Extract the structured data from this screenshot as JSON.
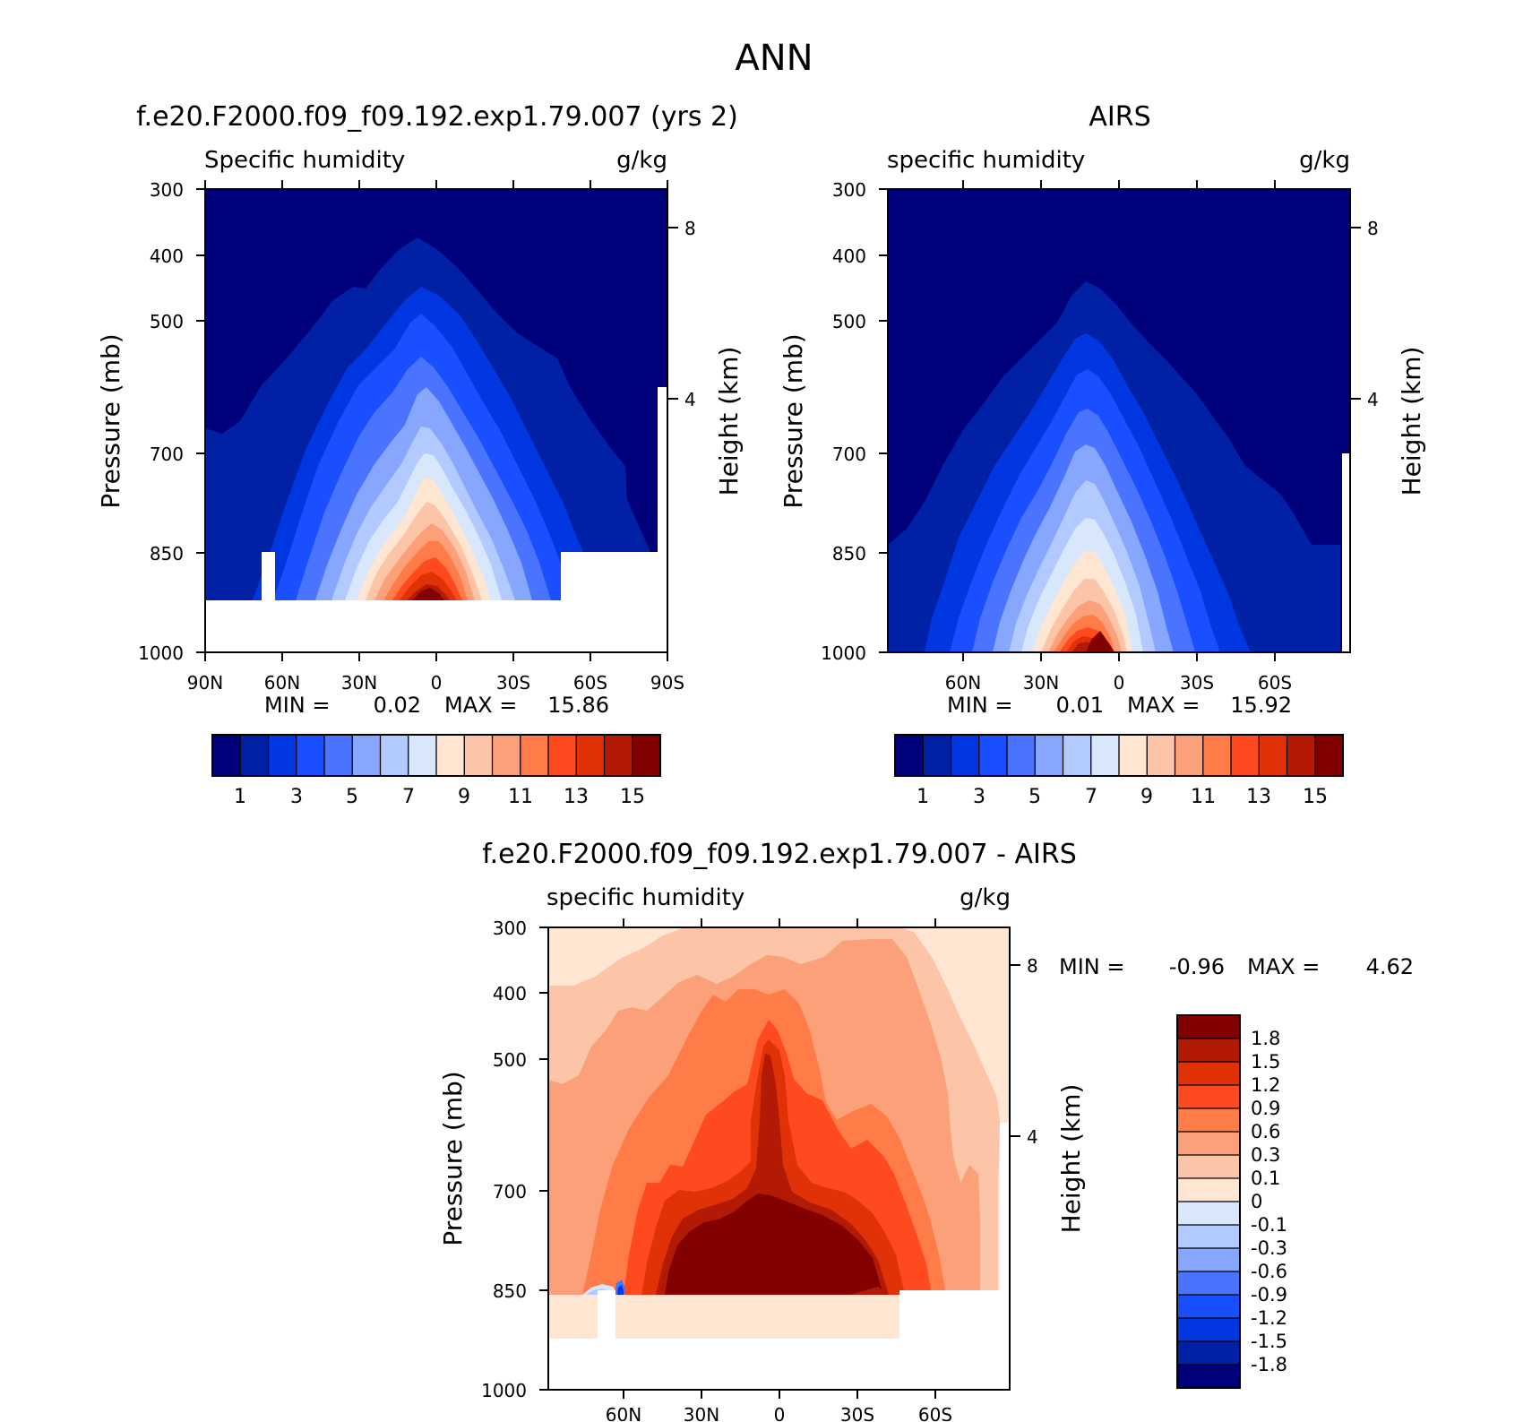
{
  "figure": {
    "title": "ANN"
  },
  "colors": {
    "seq_palette": [
      "#00007a",
      "#0021a6",
      "#0037e0",
      "#1a4fff",
      "#4a74ff",
      "#87a7ff",
      "#b2caff",
      "#d8e7fb",
      "#fee6d3",
      "#fdc5a8",
      "#fca07a",
      "#ff7b48",
      "#ff4a20",
      "#e13207",
      "#b21a05",
      "#820000"
    ],
    "diff_palette": [
      "#00007a",
      "#0021a6",
      "#0037e0",
      "#1a4fff",
      "#4a74ff",
      "#87a7ff",
      "#b2caff",
      "#d8e7fb",
      "#fee6d3",
      "#fdc5a8",
      "#fca07a",
      "#ff7b48",
      "#ff4a20",
      "#e13207",
      "#b21a05",
      "#820000"
    ]
  },
  "chart_data": [
    {
      "id": "model",
      "type": "contour",
      "title": "f.e20.F2000.f09_f09.192.exp1.79.007 (yrs 2)",
      "left_label": "Specific humidity",
      "right_label": "g/kg",
      "ylabel": "Pressure (mb)",
      "y2label": "Height (km)",
      "x_ticks": [
        "90N",
        "60N",
        "30N",
        "0",
        "30S",
        "60S",
        "90S"
      ],
      "x_tick_values": [
        90,
        60,
        30,
        0,
        -30,
        -60,
        -90
      ],
      "xlim": [
        90,
        -90
      ],
      "y_ticks": [
        "300",
        "400",
        "500",
        "700",
        "850",
        "1000"
      ],
      "y_tick_values": [
        300,
        400,
        500,
        700,
        850,
        1000
      ],
      "ylim": [
        300,
        1000
      ],
      "y2_ticks": [
        "8",
        "4"
      ],
      "y2_tick_values": [
        8,
        4
      ],
      "min_label": "MIN =",
      "min_value": "0.02",
      "max_label": "MAX =",
      "max_value": "15.86",
      "min": 0.02,
      "max": 15.86,
      "levels": [
        1,
        2,
        3,
        4,
        5,
        6,
        7,
        8,
        9,
        10,
        11,
        12,
        13,
        14,
        15
      ],
      "colorbar_labels": [
        "1",
        "3",
        "5",
        "7",
        "9",
        "11",
        "13",
        "15"
      ]
    },
    {
      "id": "obs",
      "type": "contour",
      "title": "AIRS",
      "left_label": "specific humidity",
      "right_label": "g/kg",
      "ylabel": "Pressure (mb)",
      "y2label": "Height (km)",
      "x_ticks": [
        "60N",
        "30N",
        "0",
        "30S",
        "60S"
      ],
      "x_tick_values": [
        60,
        30,
        0,
        -30,
        -60
      ],
      "xlim": [
        89.5,
        -89.5
      ],
      "y_ticks": [
        "300",
        "400",
        "500",
        "700",
        "850",
        "1000"
      ],
      "y_tick_values": [
        300,
        400,
        500,
        700,
        850,
        1000
      ],
      "ylim": [
        300,
        1000
      ],
      "y2_ticks": [
        "8",
        "4"
      ],
      "y2_tick_values": [
        8,
        4
      ],
      "min_label": "MIN =",
      "min_value": "0.01",
      "max_label": "MAX =",
      "max_value": "15.92",
      "min": 0.01,
      "max": 15.92,
      "levels": [
        1,
        2,
        3,
        4,
        5,
        6,
        7,
        8,
        9,
        10,
        11,
        12,
        13,
        14,
        15
      ],
      "colorbar_labels": [
        "1",
        "3",
        "5",
        "7",
        "9",
        "11",
        "13",
        "15"
      ]
    },
    {
      "id": "diff",
      "type": "contour",
      "title": "f.e20.F2000.f09_f09.192.exp1.79.007 - AIRS",
      "left_label": "specific humidity",
      "right_label": "g/kg",
      "ylabel": "Pressure (mb)",
      "y2label": "Height (km)",
      "x_ticks": [
        "60N",
        "30N",
        "0",
        "30S",
        "60S"
      ],
      "x_tick_values": [
        60,
        30,
        0,
        -30,
        -60
      ],
      "xlim": [
        89.5,
        -89.5
      ],
      "y_ticks": [
        "300",
        "400",
        "500",
        "700",
        "850",
        "1000"
      ],
      "y_tick_values": [
        300,
        400,
        500,
        700,
        850,
        1000
      ],
      "ylim": [
        300,
        1000
      ],
      "y2_ticks": [
        "8",
        "4"
      ],
      "y2_tick_values": [
        8,
        4
      ],
      "min_label": "MIN =",
      "min_value": "-0.96",
      "max_label": "MAX =",
      "max_value": "4.62",
      "min": -0.96,
      "max": 4.62,
      "levels": [
        -1.8,
        -1.5,
        -1.2,
        -0.9,
        -0.6,
        -0.3,
        -0.1,
        0,
        0.1,
        0.3,
        0.6,
        0.9,
        1.2,
        1.5,
        1.8
      ],
      "colorbar_labels": [
        "1.8",
        "1.5",
        "1.2",
        "0.9",
        "0.6",
        "0.3",
        "0.1",
        "0",
        "-0.1",
        "-0.3",
        "-0.6",
        "-0.9",
        "-1.2",
        "-1.5",
        "-1.8"
      ]
    }
  ]
}
